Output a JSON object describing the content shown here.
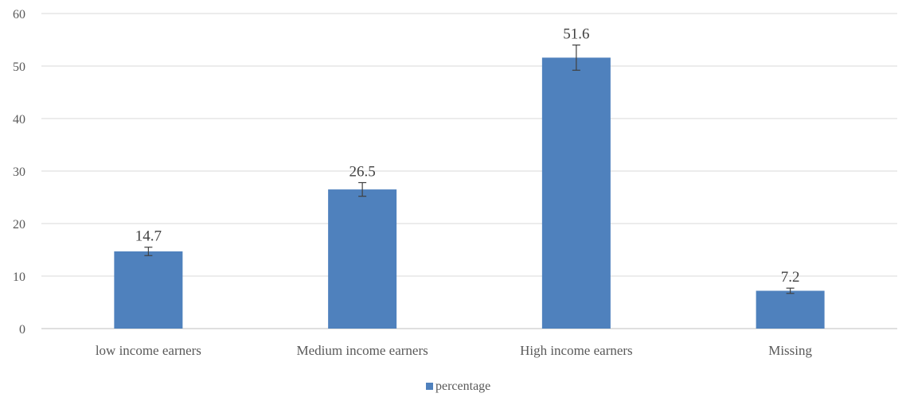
{
  "chart_data": {
    "type": "bar",
    "categories": [
      "low income earners",
      "Medium income earners",
      "High income earners",
      "Missing"
    ],
    "series": [
      {
        "name": "percentage",
        "values": [
          14.7,
          26.5,
          51.6,
          7.2
        ],
        "error_bars": [
          0.8,
          1.3,
          2.4,
          0.5
        ],
        "color": "#4f81bd"
      }
    ],
    "data_labels": [
      "14.7",
      "26.5",
      "51.6",
      "7.2"
    ],
    "title": "",
    "xlabel": "",
    "ylabel": "",
    "ylim": [
      0,
      60
    ],
    "yticks": [
      "0",
      "10",
      "20",
      "30",
      "40",
      "50",
      "60"
    ],
    "grid": true,
    "legend": "bottom"
  }
}
